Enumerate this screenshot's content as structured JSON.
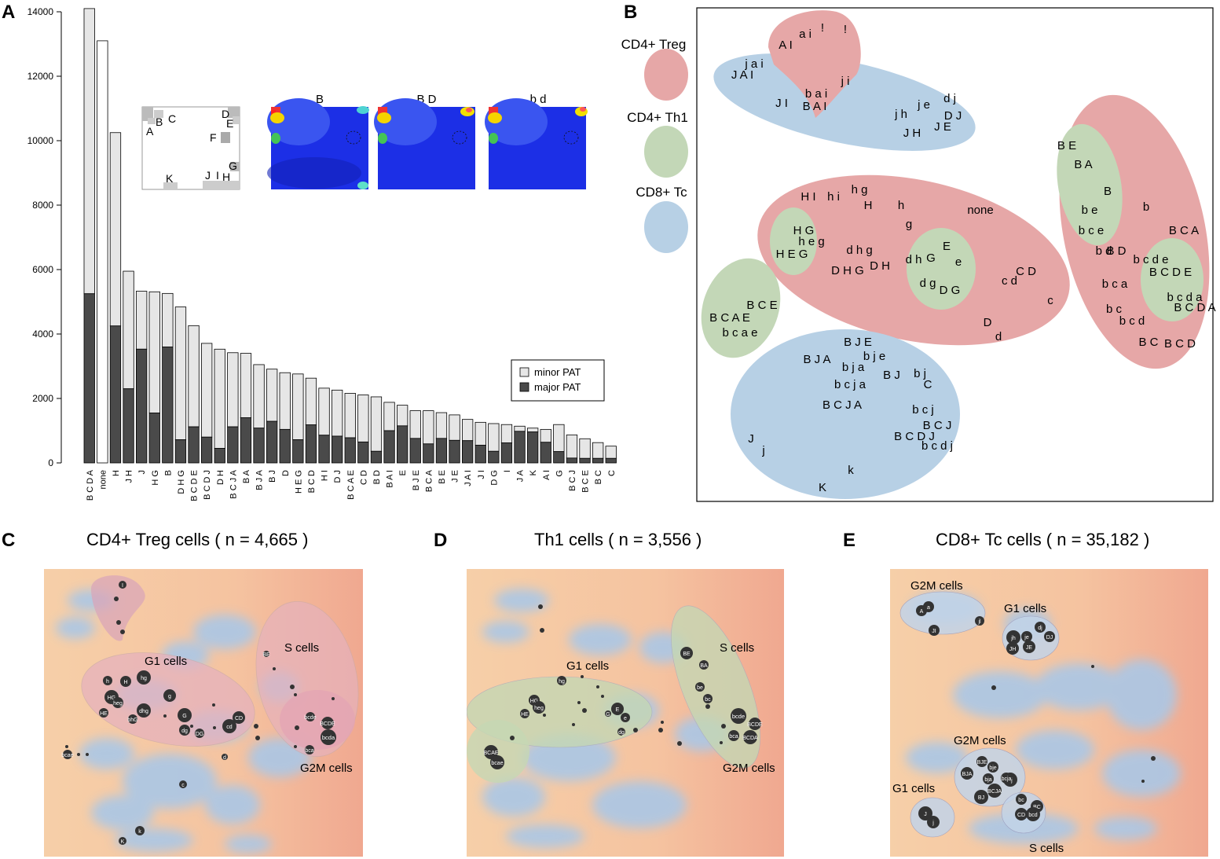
{
  "panels": {
    "a": "A",
    "b": "B",
    "c": "C",
    "d": "D",
    "e": "E"
  },
  "colors": {
    "treg": "#e6a7a7",
    "th1": "#c3d7b7",
    "tc": "#b7d0e5",
    "minor": "#e6e6e6",
    "major": "#4a4a4a",
    "none": "#ffffff"
  },
  "chart_data": [
    {
      "type": "bar",
      "stacked": true,
      "categories": [
        "B C D A",
        "none",
        "H",
        "J H",
        "J",
        "H G",
        "B",
        "D H G",
        "B C D E",
        "B C D J",
        "D H",
        "B C J A",
        "B A",
        "B J A",
        "B J",
        "D",
        "H E G",
        "B C D",
        "H I",
        "D J",
        "B C A E",
        "C D",
        "B D",
        "B A I",
        "E",
        "B J E",
        "B C A",
        "B E",
        "J E",
        "J A I",
        "J I",
        "D G",
        "I",
        "J A",
        "K",
        "A I",
        "G",
        "B C J",
        "B C E",
        "B C",
        "C"
      ],
      "series": [
        {
          "name": "major PAT",
          "values": [
            5250,
            0,
            4250,
            2300,
            3530,
            1550,
            3600,
            720,
            1120,
            800,
            450,
            1120,
            1400,
            1080,
            1290,
            1040,
            720,
            1180,
            860,
            830,
            780,
            650,
            360,
            1000,
            1150,
            760,
            590,
            760,
            700,
            690,
            550,
            360,
            620,
            980,
            960,
            640,
            350,
            150,
            140,
            140,
            140
          ]
        },
        {
          "name": "minor PAT",
          "values": [
            8850,
            13100,
            6000,
            3650,
            1800,
            3760,
            1660,
            4120,
            3140,
            2910,
            3080,
            2300,
            2000,
            1970,
            1620,
            1760,
            2040,
            1450,
            1460,
            1430,
            1380,
            1460,
            1690,
            880,
            640,
            860,
            1030,
            800,
            790,
            660,
            710,
            860,
            570,
            160,
            120,
            400,
            840,
            720,
            610,
            490,
            380
          ]
        }
      ],
      "ylim": [
        0,
        14000
      ],
      "yticks": [
        "0",
        "2000",
        "4000",
        "6000",
        "8000",
        "10000",
        "12000",
        "14000"
      ],
      "legend": [
        "minor PAT",
        "major PAT"
      ]
    },
    {
      "type": "scatter",
      "title": "CD4+ Treg cells ( n = 4,665 )",
      "annotations": [
        "G1 cells",
        "S cells",
        "G2M cells"
      ]
    },
    {
      "type": "scatter",
      "title": "Th1 cells ( n = 3,556 )",
      "annotations": [
        "G1 cells",
        "S cells",
        "G2M cells"
      ]
    },
    {
      "type": "scatter",
      "title": "CD8+ Tc cells ( n = 35,182 )",
      "annotations": [
        "G2M cells",
        "G1 cells",
        "G2M cells",
        "G1 cells",
        "S cells"
      ]
    }
  ],
  "inset": {
    "letters": [
      "A",
      "B",
      "C",
      "D",
      "E",
      "F",
      "G",
      "H",
      "I",
      "J",
      "K"
    ],
    "heatmaps": [
      "B",
      "B D",
      "b d"
    ]
  },
  "panelB": {
    "legend": [
      "CD4+ Treg",
      "CD4+ Th1",
      "CD8+ Tc"
    ],
    "labels": [
      "a i",
      "!",
      "!",
      "A I",
      "j a i",
      "J A I",
      "j i",
      "J I",
      "b a i",
      "B A I",
      "d j",
      "j e",
      "j h",
      "D J",
      "J H",
      "J E",
      "H I",
      "h i",
      "h g",
      "H",
      "h",
      "g",
      "none",
      "H G",
      "h e g",
      "H E G",
      "d h g",
      "D H G",
      "D H",
      "d h",
      "G",
      "E",
      "e",
      "d g",
      "D G",
      "c d",
      "C D",
      "c",
      "D",
      "d",
      "B C E",
      "B C A E",
      "b c a e",
      "B E",
      "B A",
      "B",
      "b e",
      "b c e",
      "b",
      "B C A",
      "b d",
      "B D",
      "b c d e",
      "B C D E",
      "b c a",
      "b c d a",
      "B C D A",
      "b c",
      "b c d",
      "B C",
      "B C D",
      "B J E",
      "b j e",
      "B J A",
      "b j a",
      "B J",
      "b j",
      "b c j a",
      "C",
      "B C J A",
      "b c j",
      "B C J",
      "B C D J",
      "b c d j",
      "J",
      "j",
      "k",
      "K"
    ]
  },
  "panelC": {
    "labels": [
      "I",
      "hg",
      "H",
      "h",
      "HG",
      "heg",
      "HE",
      "bhG",
      "dhg",
      "g",
      "G",
      "dg",
      "DG",
      "cd",
      "CD",
      "bcde",
      "BCDE",
      "bcda",
      "bca",
      "d",
      "BE",
      "bcae",
      "c",
      "k",
      "K"
    ]
  },
  "panelD": {
    "labels": [
      "hg",
      "HG",
      "heg",
      "HE",
      "E",
      "e",
      "G",
      "dg",
      "BE",
      "BA",
      "be",
      "bc",
      "bcde",
      "BCDE",
      "bca",
      "BCDA",
      "BCAE",
      "bcae"
    ]
  },
  "panelE": {
    "labels": [
      "A",
      "a",
      "JI",
      "jl",
      "jh",
      "je",
      "dj",
      "DJ",
      "JH",
      "JE",
      "BJA",
      "BJE",
      "bje",
      "bja",
      "bj",
      "bcja",
      "BCJA",
      "BJ",
      "bc",
      "BC",
      "CD",
      "bcd",
      "J",
      "j"
    ]
  }
}
